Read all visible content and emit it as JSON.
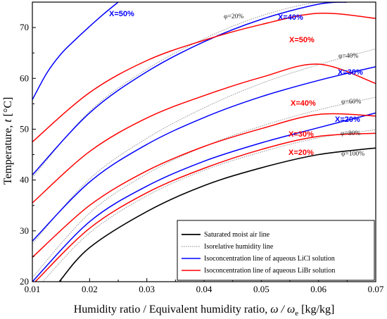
{
  "chart_data": {
    "type": "line",
    "xlabel_main": "Humidity ratio / Equivalent humidity ratio, ",
    "xlabel_sym": "ω / ω",
    "xlabel_sub": "e",
    "xlabel_unit": " [kg/kg]",
    "ylabel_main": "Temperature, ",
    "ylabel_sym": "t",
    "ylabel_unit": " [°C]",
    "xlim": [
      0.01,
      0.07
    ],
    "ylim": [
      20,
      75
    ],
    "x_ticks": [
      "0.01",
      "0.02",
      "0.03",
      "0.04",
      "0.05",
      "0.06",
      "0.07"
    ],
    "y_ticks": [
      "20",
      "30",
      "40",
      "50",
      "60",
      "70"
    ],
    "colors": {
      "saturated": "#000000",
      "isorelative": "#888888",
      "licl": "#0000ff",
      "libr": "#ff0000"
    },
    "legend_position": "bottom-right",
    "legend": [
      "Saturated moist air line",
      "Isorelative humidity line",
      "Isoconcentration line of aqueous LiCl solution",
      "Isoconcentration line of aqueous LiBr solution"
    ],
    "series": [
      {
        "kind": "saturated",
        "label": "φ=100%",
        "x": [
          0.0147,
          0.02,
          0.03,
          0.04,
          0.05,
          0.06,
          0.07
        ],
        "y": [
          20,
          26.7,
          33.8,
          38.9,
          42.4,
          45.0,
          46.3
        ]
      },
      {
        "kind": "isorelative",
        "label": "φ=80%",
        "x": [
          0.0118,
          0.02,
          0.03,
          0.04,
          0.05,
          0.06,
          0.07
        ],
        "y": [
          20,
          29.6,
          36.9,
          41.9,
          45.5,
          48.3,
          49.9
        ]
      },
      {
        "kind": "isorelative",
        "label": "φ=60%",
        "x": [
          0.01,
          0.02,
          0.03,
          0.04,
          0.05,
          0.06,
          0.07
        ],
        "y": [
          20.8,
          33.5,
          41.2,
          46.6,
          50.6,
          53.8,
          56.3
        ]
      },
      {
        "kind": "isorelative",
        "label": "φ=40%",
        "x": [
          0.01,
          0.02,
          0.03,
          0.04,
          0.05,
          0.06,
          0.07
        ],
        "y": [
          27.5,
          40.2,
          48.2,
          54.2,
          59.0,
          62.7,
          65.8
        ]
      },
      {
        "kind": "isorelative",
        "label": "φ=20%",
        "x": [
          0.01,
          0.02,
          0.03,
          0.04,
          0.05,
          0.06,
          0.068
        ],
        "y": [
          40.5,
          53.5,
          61.8,
          67.8,
          72.3,
          75.0,
          75.0
        ]
      },
      {
        "kind": "licl",
        "label": "X=20%",
        "x": [
          0.01,
          0.02,
          0.03,
          0.04,
          0.05,
          0.06,
          0.07
        ],
        "y": [
          20.0,
          31.8,
          38.8,
          43.7,
          47.3,
          50.3,
          53.2
        ]
      },
      {
        "kind": "licl",
        "label": "X=30%",
        "x": [
          0.01,
          0.02,
          0.03,
          0.04,
          0.05,
          0.06,
          0.07
        ],
        "y": [
          28.0,
          39.6,
          47.0,
          52.3,
          56.4,
          59.6,
          62.3
        ]
      },
      {
        "kind": "licl",
        "label": "X=40%",
        "x": [
          0.01,
          0.02,
          0.03,
          0.04,
          0.05,
          0.06,
          0.065
        ],
        "y": [
          41.0,
          53.2,
          61.3,
          67.2,
          71.6,
          74.6,
          75.0
        ]
      },
      {
        "kind": "licl",
        "label": "X=50%",
        "x": [
          0.01,
          0.0125,
          0.015,
          0.0175,
          0.02,
          0.0225,
          0.025
        ],
        "y": [
          55.8,
          61.0,
          64.8,
          67.6,
          70.2,
          72.7,
          75.0
        ]
      },
      {
        "kind": "libr",
        "label": "X=20%",
        "x": [
          0.0105,
          0.02,
          0.03,
          0.04,
          0.05,
          0.06,
          0.07
        ],
        "y": [
          20,
          30.5,
          37.5,
          42.3,
          46.0,
          48.6,
          49.2
        ]
      },
      {
        "kind": "libr",
        "label": "X=30%",
        "x": [
          0.01,
          0.02,
          0.03,
          0.04,
          0.05,
          0.06,
          0.07
        ],
        "y": [
          24.8,
          35.0,
          41.8,
          46.6,
          50.1,
          52.9,
          52.6
        ]
      },
      {
        "kind": "libr",
        "label": "X=40%",
        "x": [
          0.01,
          0.02,
          0.03,
          0.04,
          0.05,
          0.06,
          0.07
        ],
        "y": [
          35.5,
          45.6,
          52.2,
          56.6,
          60.2,
          62.8,
          59.0
        ]
      },
      {
        "kind": "libr",
        "label": "X=50%",
        "x": [
          0.01,
          0.02,
          0.03,
          0.04,
          0.05,
          0.06,
          0.07
        ],
        "y": [
          47.5,
          57.2,
          63.5,
          67.5,
          70.6,
          72.8,
          71.8
        ]
      }
    ]
  }
}
